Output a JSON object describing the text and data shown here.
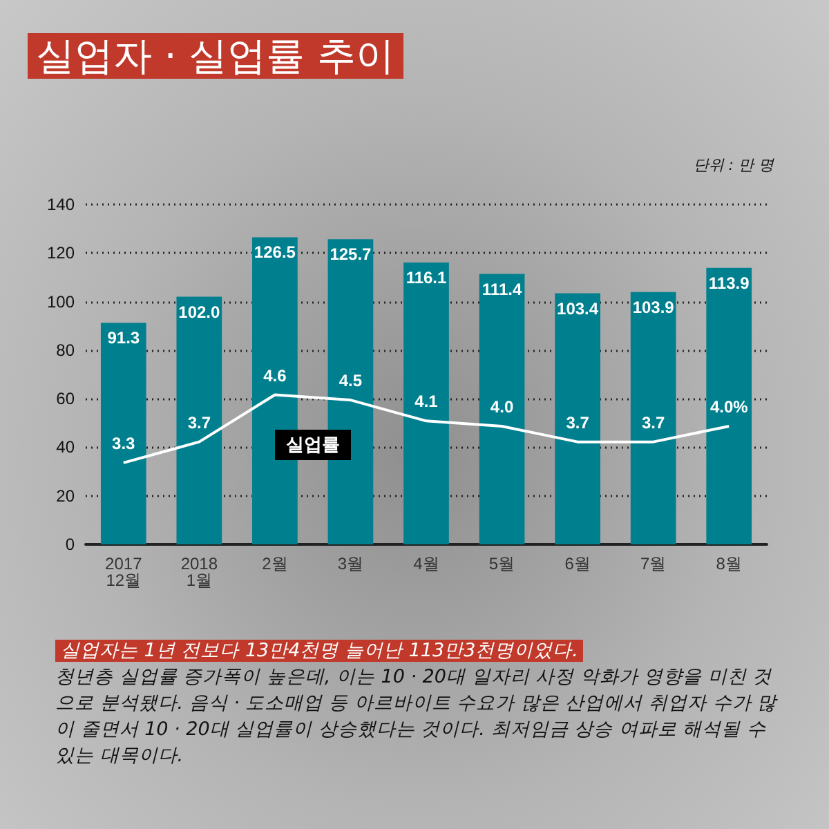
{
  "chart_data": {
    "type": "bar",
    "title": "실업자 · 실업률 추이",
    "categories": [
      "2017\n12월",
      "2018\n1월",
      "2월",
      "3월",
      "4월",
      "5월",
      "6월",
      "7월",
      "8월"
    ],
    "series": [
      {
        "color": "#00808f",
        "values": [
          91.3,
          102.0,
          126.5,
          125.7,
          116.1,
          111.4,
          103.4,
          103.9,
          113.9
        ],
        "value_labels": [
          "91.3",
          "102.0",
          "126.5",
          "125.7",
          "116.1",
          "111.4",
          "103.4",
          "103.9",
          "113.9"
        ]
      },
      {
        "type": "line",
        "name": "실업률",
        "axis": "y2",
        "color": "#ffffff",
        "marker": "none",
        "values": [
          3.3,
          3.7,
          4.6,
          4.5,
          4.1,
          4.0,
          3.7,
          3.7,
          4.0
        ],
        "value_labels": [
          "3.3",
          "3.7",
          "4.6",
          "4.5",
          "4.1",
          "4.0",
          "3.7",
          "3.7",
          "4.0%"
        ]
      }
    ],
    "ylim": [
      0,
      140
    ],
    "yticks": [
      0,
      20,
      40,
      60,
      80,
      100,
      120,
      140
    ],
    "grid": "y",
    "annotations": [
      "단위 : 만 명",
      "실업자는 1년 전보다 13만4천명 늘어난 113만3천명이었다.",
      "청년층 실업률 증가폭이 높은데, 이는 10 · 20대 일자리 사정 악화가 영향을 미친 것으로 분석됐다. 음식 · 도소매업 등 아르바이트 수요가 많은 산업에서 취업자 수가 많이 줄면서 10 · 20대 실업률이 상승했다는 것이다. 최저임금 상승 여파로 해석될 수 있는 대목이다."
    ]
  }
}
